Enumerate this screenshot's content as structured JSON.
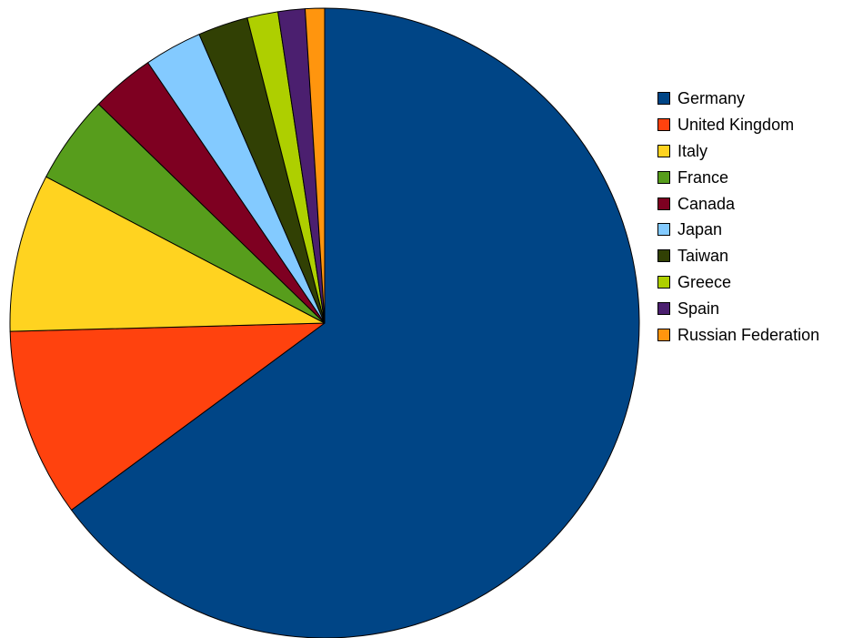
{
  "chart_data": {
    "type": "pie",
    "title": "",
    "start": "12 o'clock",
    "direction": "clockwise",
    "legend_position": "right",
    "slice_border_color": "#000000",
    "series": [
      {
        "categories": [
          "Germany",
          "United Kingdom",
          "Italy",
          "France",
          "Canada",
          "Japan",
          "Taiwan",
          "Greece",
          "Spain",
          "Russian Federation"
        ],
        "colors": [
          "#004586",
          "#FF420E",
          "#FFD320",
          "#579D1C",
          "#7E0021",
          "#83CAFF",
          "#314004",
          "#AECF00",
          "#4B1F6F",
          "#FF950E"
        ],
        "values": [
          65.6,
          9.8,
          8.2,
          4.6,
          3.3,
          3.0,
          2.6,
          1.6,
          1.4,
          1.0
        ]
      }
    ]
  }
}
